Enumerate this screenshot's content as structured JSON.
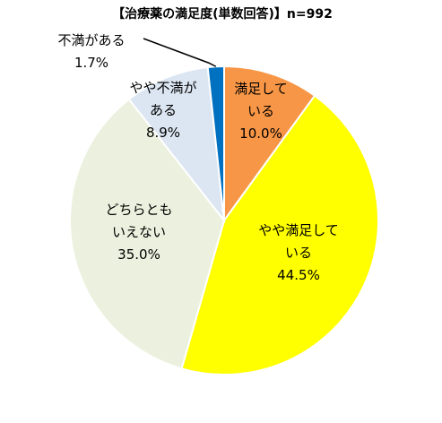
{
  "chart_data": {
    "type": "pie",
    "title": "【治療薬の満足度(単数回答)】n=992",
    "slices": [
      {
        "label_lines": [
          "満足して",
          "いる"
        ],
        "value_label": "10.0%",
        "value": 10.0,
        "color": "#F79646"
      },
      {
        "label_lines": [
          "やや満足して",
          "いる"
        ],
        "value_label": "44.5%",
        "value": 44.5,
        "color": "#FFFF00"
      },
      {
        "label_lines": [
          "どちらとも",
          "いえない"
        ],
        "value_label": "35.0%",
        "value": 35.0,
        "color": "#EBF1DE"
      },
      {
        "label_lines": [
          "やや不満が",
          "ある"
        ],
        "value_label": "8.9%",
        "value": 8.9,
        "color": "#DCE6F2"
      },
      {
        "label_lines": [
          "不満がある"
        ],
        "value_label": "1.7%",
        "value": 1.7,
        "color": "#0070C0"
      }
    ],
    "start": "12 o'clock",
    "direction": "clockwise"
  }
}
